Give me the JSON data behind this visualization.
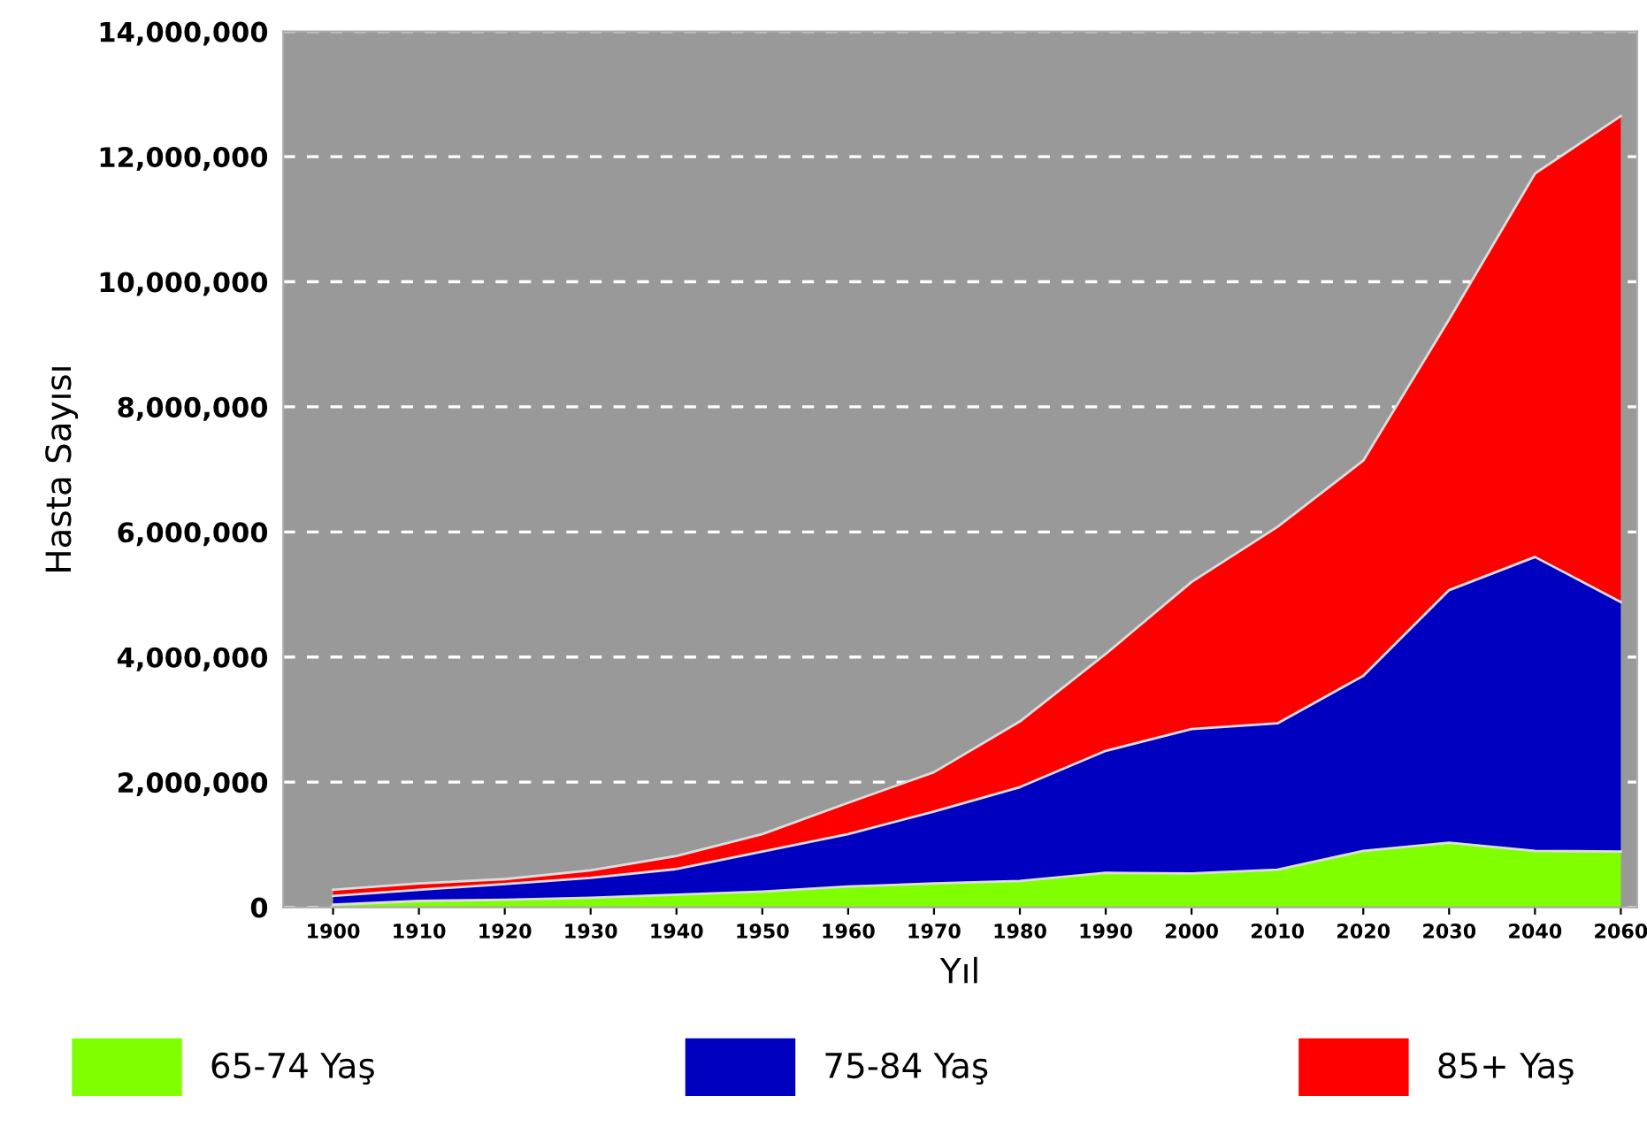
{
  "chart_data": {
    "type": "area",
    "stacked": true,
    "xlabel": "Yıl",
    "ylabel": "Hasta Sayısı",
    "categories": [
      "1900",
      "1910",
      "1920",
      "1930",
      "1940",
      "1950",
      "1960",
      "1970",
      "1980",
      "1990",
      "2000",
      "2010",
      "2020",
      "2030",
      "2040",
      "2060"
    ],
    "series": [
      {
        "name": "65-74 Yaş",
        "color": "#80ff00",
        "values": [
          40000,
          100000,
          120000,
          150000,
          200000,
          250000,
          330000,
          380000,
          420000,
          550000,
          540000,
          600000,
          900000,
          1030000,
          900000,
          890000
        ]
      },
      {
        "name": "75-84 Yaş",
        "color": "#0000c0",
        "values": [
          140000,
          180000,
          250000,
          320000,
          410000,
          640000,
          840000,
          1150000,
          1500000,
          1950000,
          2310000,
          2340000,
          2800000,
          4040000,
          4700000,
          3990000
        ]
      },
      {
        "name": "85+ Yaş",
        "color": "#ff0000",
        "values": [
          100000,
          100000,
          80000,
          120000,
          210000,
          280000,
          500000,
          630000,
          1050000,
          1550000,
          2350000,
          3140000,
          3440000,
          4330000,
          6130000,
          7770000
        ]
      }
    ],
    "ylim": [
      0,
      14000000
    ],
    "yticks": [
      {
        "value": 0,
        "label": "0"
      },
      {
        "value": 2000000,
        "label": "2,000,000"
      },
      {
        "value": 4000000,
        "label": "4,000,000"
      },
      {
        "value": 6000000,
        "label": "6,000,000"
      },
      {
        "value": 8000000,
        "label": "8,000,000"
      },
      {
        "value": 10000000,
        "label": "10,000,000"
      },
      {
        "value": 12000000,
        "label": "12,000,000"
      },
      {
        "value": 14000000,
        "label": "14,000,000"
      }
    ],
    "grid": "y",
    "legend": "bottom"
  }
}
